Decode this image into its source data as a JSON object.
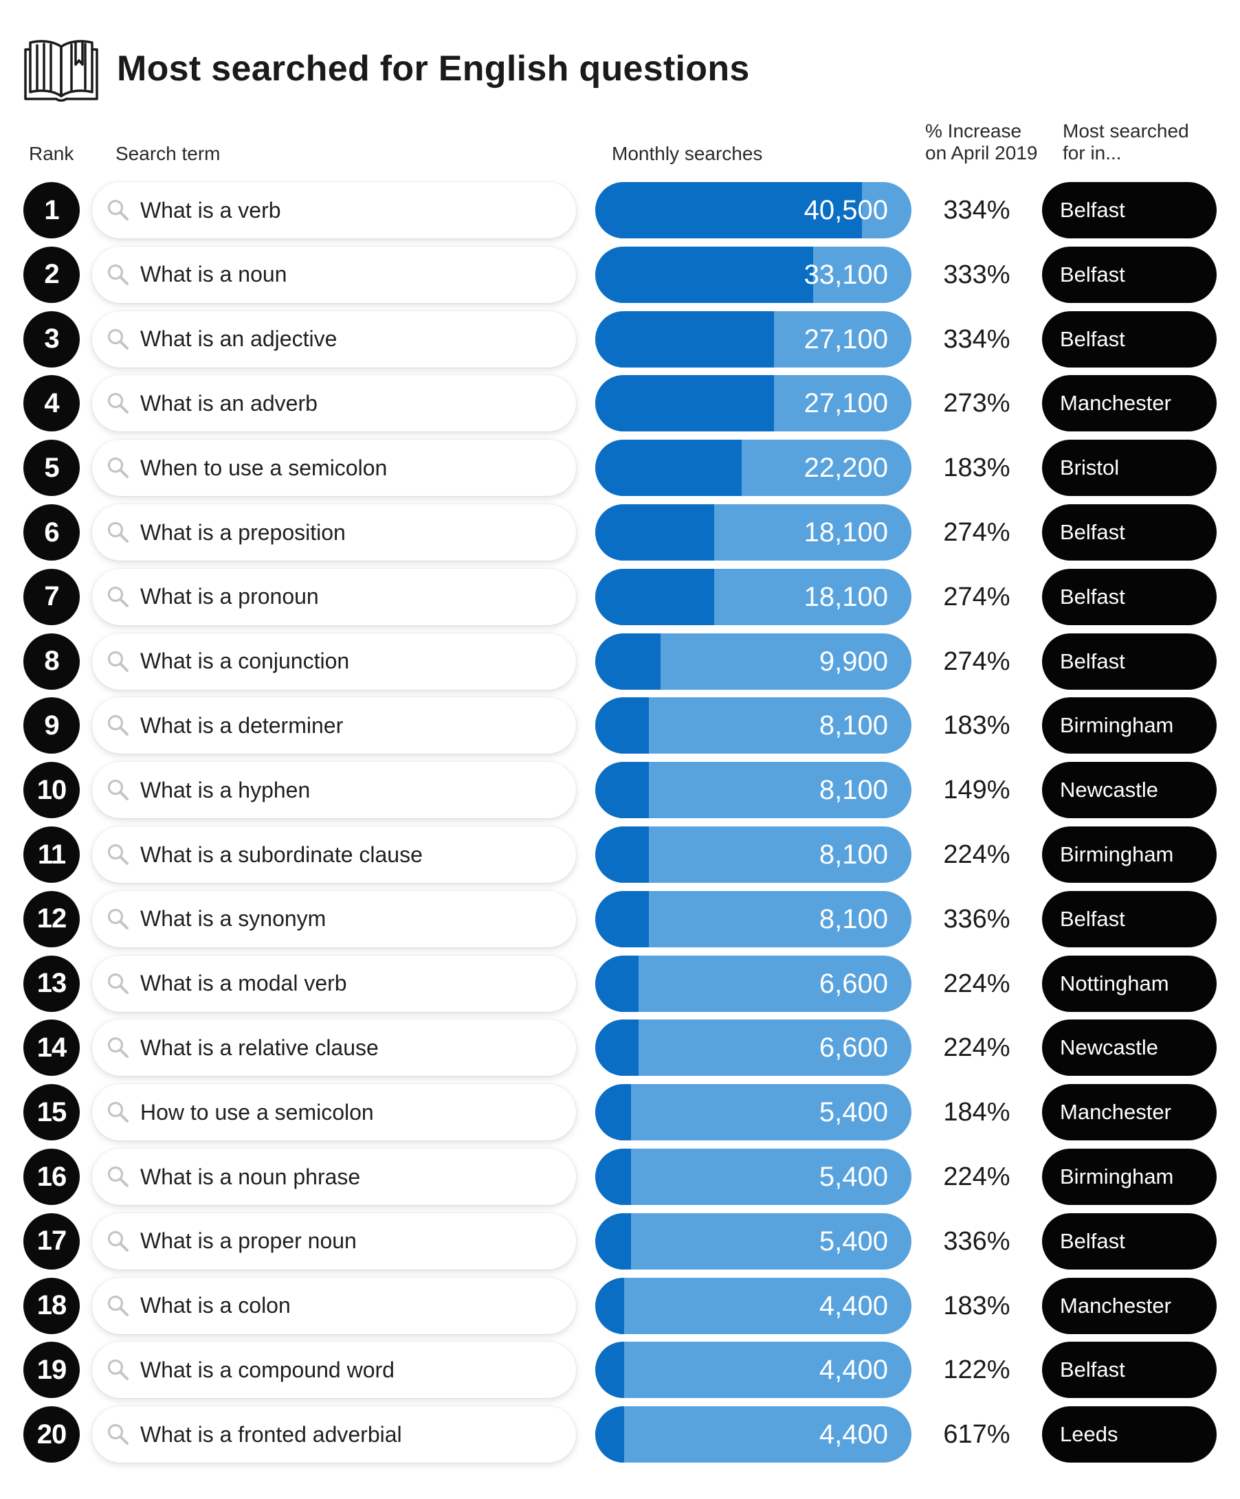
{
  "title": "Most searched for English questions",
  "icons": {
    "header": "open-book-icon",
    "search": "magnifier-icon"
  },
  "columns": {
    "rank": "Rank",
    "term": "Search term",
    "searches": "Monthly searches",
    "increase_line1": "% Increase",
    "increase_line2": "on April 2019",
    "location_line1": "Most searched",
    "location_line2": "for in..."
  },
  "colors": {
    "bar_fill": "#0a6ec4",
    "bar_track": "#58a2de",
    "rank_badge": "#0a0a0a",
    "city_pill": "#050505"
  },
  "chart_data": {
    "type": "bar",
    "orientation": "horizontal",
    "title": "Most searched for English questions",
    "xlabel": "Monthly searches",
    "ylabel": "Search term",
    "xlim": [
      0,
      48000
    ],
    "grid": false,
    "rows": [
      {
        "rank": "1",
        "term": "What is a verb",
        "value": 40500,
        "value_label": "40,500",
        "increase": "334%",
        "city": "Belfast"
      },
      {
        "rank": "2",
        "term": "What is a noun",
        "value": 33100,
        "value_label": "33,100",
        "increase": "333%",
        "city": "Belfast"
      },
      {
        "rank": "3",
        "term": "What is an adjective",
        "value": 27100,
        "value_label": "27,100",
        "increase": "334%",
        "city": "Belfast"
      },
      {
        "rank": "4",
        "term": "What is an adverb",
        "value": 27100,
        "value_label": "27,100",
        "increase": "273%",
        "city": "Manchester"
      },
      {
        "rank": "5",
        "term": "When to use a semicolon",
        "value": 22200,
        "value_label": "22,200",
        "increase": "183%",
        "city": "Bristol"
      },
      {
        "rank": "6",
        "term": "What is a preposition",
        "value": 18100,
        "value_label": "18,100",
        "increase": "274%",
        "city": "Belfast"
      },
      {
        "rank": "7",
        "term": "What is a pronoun",
        "value": 18100,
        "value_label": "18,100",
        "increase": "274%",
        "city": "Belfast"
      },
      {
        "rank": "8",
        "term": "What is a conjunction",
        "value": 9900,
        "value_label": "9,900",
        "increase": "274%",
        "city": "Belfast"
      },
      {
        "rank": "9",
        "term": "What is a determiner",
        "value": 8100,
        "value_label": "8,100",
        "increase": "183%",
        "city": "Birmingham"
      },
      {
        "rank": "10",
        "term": "What is a hyphen",
        "value": 8100,
        "value_label": "8,100",
        "increase": "149%",
        "city": "Newcastle"
      },
      {
        "rank": "11",
        "term": "What is a subordinate clause",
        "value": 8100,
        "value_label": "8,100",
        "increase": "224%",
        "city": "Birmingham"
      },
      {
        "rank": "12",
        "term": "What is a synonym",
        "value": 8100,
        "value_label": "8,100",
        "increase": "336%",
        "city": "Belfast"
      },
      {
        "rank": "13",
        "term": "What is a modal verb",
        "value": 6600,
        "value_label": "6,600",
        "increase": "224%",
        "city": "Nottingham"
      },
      {
        "rank": "14",
        "term": "What is a relative clause",
        "value": 6600,
        "value_label": "6,600",
        "increase": "224%",
        "city": "Newcastle"
      },
      {
        "rank": "15",
        "term": "How to use a semicolon",
        "value": 5400,
        "value_label": "5,400",
        "increase": "184%",
        "city": "Manchester"
      },
      {
        "rank": "16",
        "term": "What is a noun phrase",
        "value": 5400,
        "value_label": "5,400",
        "increase": "224%",
        "city": "Birmingham"
      },
      {
        "rank": "17",
        "term": "What is a proper noun",
        "value": 5400,
        "value_label": "5,400",
        "increase": "336%",
        "city": "Belfast"
      },
      {
        "rank": "18",
        "term": "What is a colon",
        "value": 4400,
        "value_label": "4,400",
        "increase": "183%",
        "city": "Manchester"
      },
      {
        "rank": "19",
        "term": "What is a compound word",
        "value": 4400,
        "value_label": "4,400",
        "increase": "122%",
        "city": "Belfast"
      },
      {
        "rank": "20",
        "term": "What is a fronted adverbial",
        "value": 4400,
        "value_label": "4,400",
        "increase": "617%",
        "city": "Leeds"
      }
    ]
  }
}
